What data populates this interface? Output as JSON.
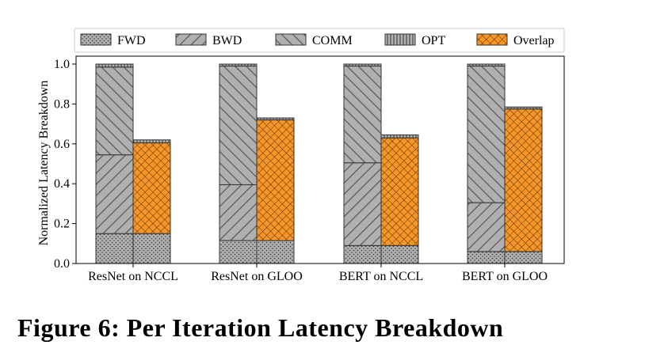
{
  "figure": {
    "caption": "Figure 6: Per Iteration Latency Breakdown"
  },
  "chart_data": {
    "type": "bar",
    "stacked": true,
    "categories": [
      "ResNet on NCCL",
      "ResNet on GLOO",
      "BERT on NCCL",
      "BERT on GLOO"
    ],
    "ylabel": "Normalized Latency Breakdown",
    "ylim": [
      0,
      1.0
    ],
    "yticks": [
      "0.0",
      "0.2",
      "0.4",
      "0.6",
      "0.8",
      "1.0"
    ],
    "grid": false,
    "legend_position": "top",
    "legend": [
      "FWD",
      "BWD",
      "COMM",
      "OPT",
      "Overlap"
    ],
    "series_styles": {
      "FWD": {
        "fill": "#b0b0b0",
        "pattern": "dots"
      },
      "BWD": {
        "fill": "#b0b0b0",
        "pattern": "forward-diagonal"
      },
      "COMM": {
        "fill": "#b0b0b0",
        "pattern": "back-diagonal"
      },
      "OPT": {
        "fill": "#b0b0b0",
        "pattern": "vertical"
      },
      "Overlap": {
        "fill": "#f5962a",
        "pattern": "crosshatch"
      }
    },
    "stacks": [
      {
        "category": "ResNet on NCCL",
        "sequential": {
          "FWD": 0.15,
          "BWD": 0.395,
          "COMM": 0.44,
          "OPT": 0.015
        },
        "overlap": {
          "FWD": 0.15,
          "Overlap": 0.455,
          "OPT": 0.015
        }
      },
      {
        "category": "ResNet on GLOO",
        "sequential": {
          "FWD": 0.115,
          "BWD": 0.28,
          "COMM": 0.595,
          "OPT": 0.01
        },
        "overlap": {
          "FWD": 0.115,
          "Overlap": 0.605,
          "OPT": 0.01
        }
      },
      {
        "category": "BERT on NCCL",
        "sequential": {
          "FWD": 0.09,
          "BWD": 0.415,
          "COMM": 0.485,
          "OPT": 0.01
        },
        "overlap": {
          "FWD": 0.09,
          "Overlap": 0.54,
          "OPT": 0.015
        }
      },
      {
        "category": "BERT on GLOO",
        "sequential": {
          "FWD": 0.06,
          "BWD": 0.245,
          "COMM": 0.685,
          "OPT": 0.01
        },
        "overlap": {
          "FWD": 0.06,
          "Overlap": 0.715,
          "OPT": 0.01
        }
      }
    ]
  }
}
